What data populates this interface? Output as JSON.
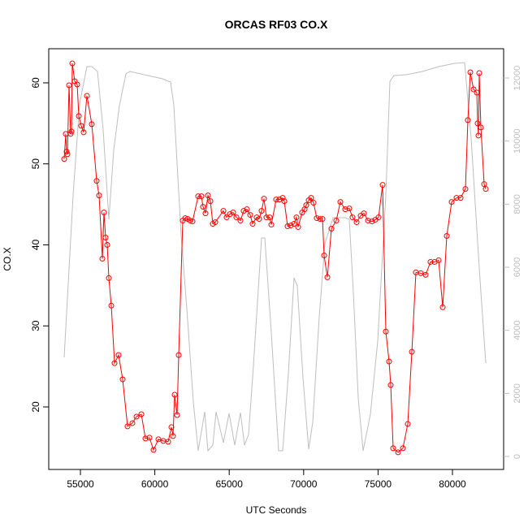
{
  "chart_data": {
    "type": "line",
    "title": "ORCAS RF03 CO.X",
    "x_label": "UTC Seconds",
    "y_label": "CO.X",
    "xlim": [
      52871,
      83439
    ],
    "ylim": [
      12.28,
      64.21
    ],
    "y2lim": [
      -412,
      12928
    ],
    "xticks": [
      55000,
      60000,
      65000,
      70000,
      75000,
      80000
    ],
    "yticks": [
      20,
      30,
      40,
      50,
      60
    ],
    "y2ticks": [
      0,
      2000,
      4000,
      6000,
      8000,
      10000,
      12000
    ],
    "series": [
      {
        "color": "#ff0000",
        "markers": true,
        "axis": "y",
        "x": [
          53908,
          54017,
          54072,
          54127,
          54236,
          54345,
          54400,
          54454,
          54618,
          54782,
          54891,
          55055,
          55218,
          55437,
          55764,
          56092,
          56256,
          56474,
          56583,
          56692,
          56801,
          56911,
          57074,
          57293,
          57566,
          57838,
          58166,
          58493,
          58766,
          59094,
          59367,
          59640,
          59913,
          60240,
          60568,
          60895,
          61114,
          61223,
          61332,
          61496,
          61605,
          61878,
          62041,
          62205,
          62369,
          62533,
          62915,
          63133,
          63242,
          63406,
          63570,
          63734,
          63897,
          64061,
          64607,
          64825,
          65044,
          65262,
          65480,
          65753,
          65972,
          66190,
          66408,
          66572,
          66845,
          67009,
          67173,
          67336,
          67500,
          67718,
          67828,
          68155,
          68374,
          68592,
          68701,
          68920,
          69138,
          69356,
          69520,
          69629,
          69902,
          70066,
          70175,
          70339,
          70502,
          70666,
          70884,
          71103,
          71267,
          71376,
          71594,
          71867,
          72195,
          72467,
          72795,
          73068,
          73286,
          73559,
          73832,
          74050,
          74323,
          74596,
          74814,
          75033,
          75306,
          75524,
          75742,
          75852,
          76016,
          76343,
          76671,
          76998,
          77271,
          77544,
          77871,
          78199,
          78526,
          78799,
          79072,
          79345,
          79618,
          79946,
          80273,
          80546,
          80873,
          81037,
          81201,
          81419,
          81638,
          81692,
          81747,
          81801,
          81911,
          82129,
          82238
        ],
        "values": [
          50.6,
          53.7,
          51.5,
          51.2,
          59.7,
          53.7,
          54.0,
          62.4,
          60.2,
          59.8,
          55.9,
          54.7,
          53.9,
          58.4,
          54.9,
          47.9,
          46.1,
          38.3,
          44.0,
          40.9,
          40.0,
          35.9,
          32.5,
          25.4,
          26.4,
          23.4,
          17.6,
          18.0,
          18.8,
          19.1,
          16.1,
          16.2,
          14.7,
          16.0,
          15.8,
          15.7,
          17.5,
          16.4,
          21.5,
          19.0,
          26.4,
          43.0,
          43.3,
          43.2,
          43.0,
          42.9,
          46.0,
          46.0,
          44.7,
          43.9,
          46.1,
          45.4,
          42.6,
          42.8,
          44.2,
          43.4,
          43.8,
          44.0,
          43.4,
          43.0,
          44.2,
          44.4,
          43.7,
          42.6,
          43.4,
          43.2,
          44.2,
          45.7,
          43.4,
          43.4,
          42.5,
          45.6,
          45.6,
          45.8,
          45.4,
          42.3,
          42.4,
          42.6,
          43.4,
          42.2,
          44.0,
          44.4,
          44.9,
          45.5,
          45.8,
          45.2,
          43.3,
          43.2,
          43.2,
          38.7,
          36.0,
          42.0,
          43.0,
          45.3,
          44.4,
          44.5,
          43.4,
          42.8,
          43.6,
          43.9,
          43.0,
          42.9,
          43.1,
          43.4,
          47.4,
          29.3,
          25.6,
          22.7,
          14.9,
          14.4,
          14.9,
          17.9,
          26.8,
          36.6,
          36.5,
          36.3,
          37.9,
          37.9,
          38.1,
          32.3,
          41.1,
          45.3,
          45.8,
          45.8,
          46.9,
          55.4,
          61.3,
          59.2,
          58.8,
          55.0,
          53.5,
          61.2,
          54.5,
          47.5,
          46.9
        ]
      },
      {
        "color": "#bebebe",
        "markers": false,
        "axis": "y2",
        "x": [
          53908,
          54509,
          54945,
          55437,
          55764,
          56147,
          56529,
          56911,
          57238,
          57620,
          58057,
          58330,
          60513,
          61059,
          61278,
          61769,
          62151,
          62588,
          62915,
          63352,
          63570,
          63897,
          64116,
          64607,
          64989,
          65371,
          65753,
          66026,
          66299,
          66627,
          67173,
          67391,
          67828,
          68319,
          68592,
          68974,
          69356,
          69574,
          69956,
          70339,
          70612,
          71049,
          71430,
          71976,
          72795,
          73068,
          73341,
          73668,
          73996,
          74487,
          74978,
          75524,
          75797,
          76070,
          76889,
          77981,
          79072,
          80164,
          80819,
          81256,
          81801,
          82238
        ],
        "values": [
          3142,
          8292,
          11177,
          12361,
          12361,
          12207,
          10353,
          7520,
          9709,
          11125,
          12130,
          12207,
          11975,
          11872,
          11125,
          7005,
          4687,
          1725,
          180,
          1416,
          180,
          360,
          1416,
          438,
          1365,
          360,
          1391,
          360,
          695,
          2884,
          6928,
          6928,
          3915,
          180,
          180,
          2627,
          5666,
          5408,
          2498,
          232,
          1082,
          4429,
          6747,
          7571,
          7571,
          7520,
          5202,
          1854,
          180,
          1339,
          3657,
          8292,
          11898,
          12078,
          12104,
          12207,
          12361,
          12464,
          12490,
          10095,
          5975,
          2962
        ]
      }
    ]
  }
}
